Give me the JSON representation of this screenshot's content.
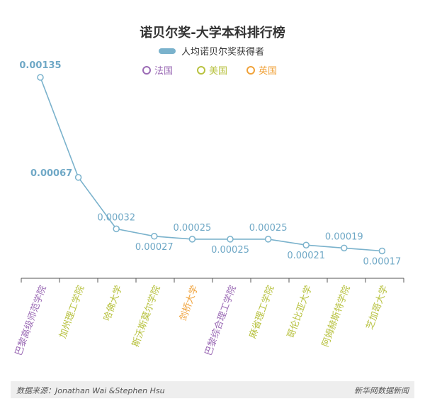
{
  "chart_data": {
    "type": "line",
    "title": "诺贝尔奖-大学本科排行榜",
    "legend": {
      "series_name": "人均诺贝尔奖获得者",
      "categories": [
        {
          "label": "法国",
          "color": "#9b6bb5"
        },
        {
          "label": "美国",
          "color": "#b8c240"
        },
        {
          "label": "英国",
          "color": "#f0a23a"
        }
      ],
      "placement": "top-center"
    },
    "categories": [
      "巴黎高级师范学院",
      "加州理工学院",
      "哈佛大学",
      "斯沃斯莫尔学院",
      "剑桥大学",
      "巴黎综合理工学院",
      "麻省理工学院",
      "哥伦比亚大学",
      "阿姆赫斯特学院",
      "芝加哥大学"
    ],
    "category_country": [
      "法国",
      "美国",
      "美国",
      "美国",
      "英国",
      "法国",
      "美国",
      "美国",
      "美国",
      "美国"
    ],
    "series": [
      {
        "name": "人均诺贝尔奖获得者",
        "values": [
          0.00135,
          0.00067,
          0.00032,
          0.00027,
          0.00025,
          0.00025,
          0.00025,
          0.00021,
          0.00019,
          0.00017
        ],
        "labels": [
          "0.00135",
          "0.00067",
          "0.00032",
          "0.00027",
          "0.00025",
          "0.00025",
          "0.00025",
          "0.00021",
          "0.00019",
          "0.00017"
        ]
      }
    ],
    "line_color": "#7ab2cc",
    "label_color": "#6fa8c6",
    "grid": false
  },
  "footer": {
    "source": "数据来源：Jonathan Wai &Stephen Hsu",
    "brand": "新华网数据新闻"
  }
}
